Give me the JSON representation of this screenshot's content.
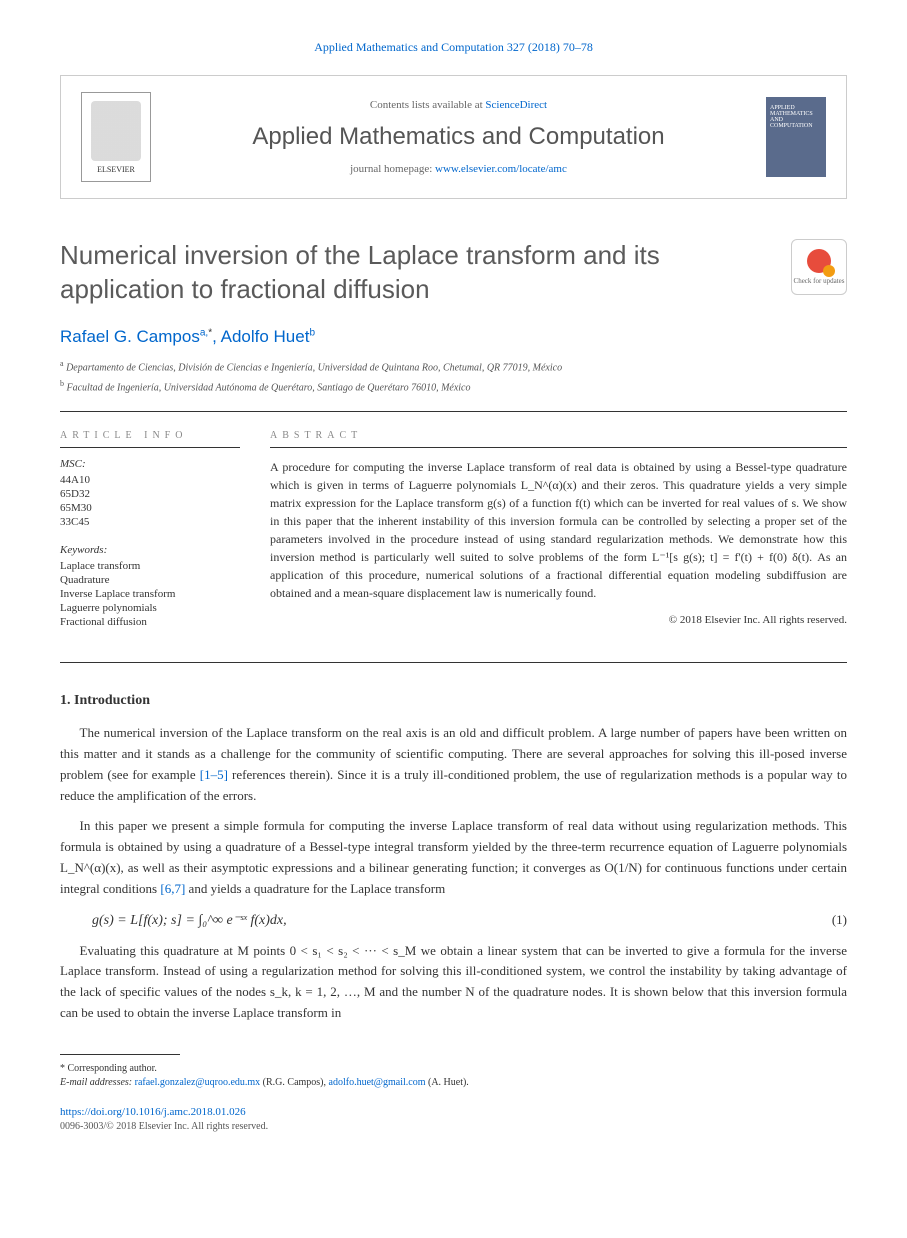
{
  "citation": "Applied Mathematics and Computation 327 (2018) 70–78",
  "header": {
    "elsevier_label": "ELSEVIER",
    "contents_prefix": "Contents lists available at ",
    "contents_link": "ScienceDirect",
    "journal_name": "Applied Mathematics and Computation",
    "homepage_prefix": "journal homepage: ",
    "homepage_url": "www.elsevier.com/locate/amc",
    "cover_text": "APPLIED MATHEMATICS AND COMPUTATION"
  },
  "article": {
    "title": "Numerical inversion of the Laplace transform and its application to fractional diffusion",
    "crossmark_label": "Check for updates",
    "authors_html": "Rafael G. Campos",
    "author1": "Rafael G. Campos",
    "author1_sup": "a,",
    "author1_corr": "*",
    "author2": "Adolfo Huet",
    "author2_sup": "b",
    "affiliations": [
      "Departamento de Ciencias, División de Ciencias e Ingeniería, Universidad de Quintana Roo, Chetumal, QR 77019, México",
      "Facultad de Ingeniería, Universidad Autónoma de Querétaro, Santiago de Querétaro 76010, México"
    ],
    "aff_sup": [
      "a",
      "b"
    ]
  },
  "info": {
    "heading": "ARTICLE INFO",
    "msc_label": "MSC:",
    "msc": [
      "44A10",
      "65D32",
      "65M30",
      "33C45"
    ],
    "keywords_label": "Keywords:",
    "keywords": [
      "Laplace transform",
      "Quadrature",
      "Inverse Laplace transform",
      "Laguerre polynomials",
      "Fractional diffusion"
    ]
  },
  "abstract": {
    "heading": "ABSTRACT",
    "text": "A procedure for computing the inverse Laplace transform of real data is obtained by using a Bessel-type quadrature which is given in terms of Laguerre polynomials L_N^(α)(x) and their zeros. This quadrature yields a very simple matrix expression for the Laplace transform g(s) of a function f(t) which can be inverted for real values of s. We show in this paper that the inherent instability of this inversion formula can be controlled by selecting a proper set of the parameters involved in the procedure instead of using standard regularization methods. We demonstrate how this inversion method is particularly well suited to solve problems of the form L⁻¹[s g(s); t] = f'(t) + f(0) δ(t). As an application of this procedure, numerical solutions of a fractional differential equation modeling subdiffusion are obtained and a mean-square displacement law is numerically found.",
    "copyright": "© 2018 Elsevier Inc. All rights reserved."
  },
  "sections": {
    "intro_heading": "1. Introduction",
    "para1": "The numerical inversion of the Laplace transform on the real axis is an old and difficult problem. A large number of papers have been written on this matter and it stands as a challenge for the community of scientific computing. There are several approaches for solving this ill-posed inverse problem (see for example ",
    "para1_ref": "[1–5]",
    "para1_cont": " references therein). Since it is a truly ill-conditioned problem, the use of regularization methods is a popular way to reduce the amplification of the errors.",
    "para2": "In this paper we present a simple formula for computing the inverse Laplace transform of real data without using regularization methods. This formula is obtained by using a quadrature of a Bessel-type integral transform yielded by the three-term recurrence equation of Laguerre polynomials L_N^(α)(x), as well as their asymptotic expressions and a bilinear generating function; it converges as O(1/N) for continuous functions under certain integral conditions ",
    "para2_ref": "[6,7]",
    "para2_cont": " and yields a quadrature for the Laplace transform",
    "equation1": "g(s) = L[f(x); s] = ∫₀^∞ e⁻ˢˣ f(x)dx,",
    "eq1_num": "(1)",
    "para3": "Evaluating this quadrature at M points 0 < s₁ < s₂ < ··· < s_M we obtain a linear system that can be inverted to give a formula for the inverse Laplace transform. Instead of using a regularization method for solving this ill-conditioned system, we control the instability by taking advantage of the lack of specific values of the nodes s_k, k = 1, 2, …, M and the number N of the quadrature nodes. It is shown below that this inversion formula can be used to obtain the inverse Laplace transform in"
  },
  "footer": {
    "corr_label": "* Corresponding author.",
    "email_label": "E-mail addresses: ",
    "email1": "rafael.gonzalez@uqroo.edu.mx",
    "email1_name": " (R.G. Campos), ",
    "email2": "adolfo.huet@gmail.com",
    "email2_name": " (A. Huet).",
    "doi": "https://doi.org/10.1016/j.amc.2018.01.026",
    "issn": "0096-3003/© 2018 Elsevier Inc. All rights reserved."
  },
  "colors": {
    "link": "#0066cc",
    "title_gray": "#5a5a5a",
    "text": "#333333",
    "muted": "#888888",
    "cover_bg": "#5a6b8c"
  }
}
